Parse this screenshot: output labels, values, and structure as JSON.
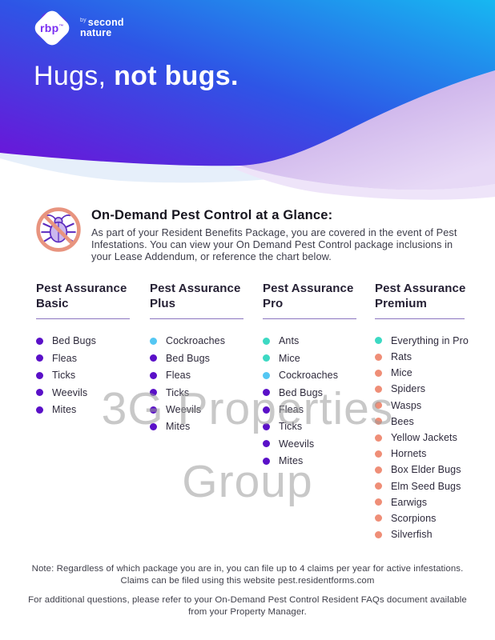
{
  "brand": {
    "logo_text": "rbp",
    "logo_mark": "™",
    "byline_by": "by",
    "byline_line1": "second",
    "byline_line2": "nature"
  },
  "hero": {
    "title_regular": "Hugs, ",
    "title_bold": "not bugs."
  },
  "intro": {
    "icon": "no-bugs-icon",
    "heading": "On-Demand Pest Control at a Glance:",
    "body": "As part of your Resident Benefits Package, you are covered in the event of Pest Infestations. You can view your On Demand Pest Control package inclusions in your Lease Addendum, or reference the chart below."
  },
  "packages": [
    {
      "name_line1": "Pest Assurance",
      "name_line2": "Basic",
      "items": [
        {
          "label": "Bed Bugs",
          "color": "purple"
        },
        {
          "label": "Fleas",
          "color": "purple"
        },
        {
          "label": "Ticks",
          "color": "purple"
        },
        {
          "label": "Weevils",
          "color": "purple"
        },
        {
          "label": "Mites",
          "color": "purple"
        }
      ]
    },
    {
      "name_line1": "Pest Assurance",
      "name_line2": "Plus",
      "items": [
        {
          "label": "Cockroaches",
          "color": "cyan"
        },
        {
          "label": "Bed Bugs",
          "color": "purple"
        },
        {
          "label": "Fleas",
          "color": "purple"
        },
        {
          "label": "Ticks",
          "color": "purple"
        },
        {
          "label": "Weevils",
          "color": "purple"
        },
        {
          "label": "Mites",
          "color": "purple"
        }
      ]
    },
    {
      "name_line1": "Pest Assurance",
      "name_line2": "Pro",
      "items": [
        {
          "label": "Ants",
          "color": "teal"
        },
        {
          "label": "Mice",
          "color": "teal"
        },
        {
          "label": "Cockroaches",
          "color": "cyan"
        },
        {
          "label": "Bed Bugs",
          "color": "purple"
        },
        {
          "label": "Fleas",
          "color": "purple"
        },
        {
          "label": "Ticks",
          "color": "purple"
        },
        {
          "label": "Weevils",
          "color": "purple"
        },
        {
          "label": "Mites",
          "color": "purple"
        }
      ]
    },
    {
      "name_line1": "Pest Assurance",
      "name_line2": "Premium",
      "items": [
        {
          "label": "Everything in Pro",
          "color": "teal"
        },
        {
          "label": "Rats",
          "color": "salmon"
        },
        {
          "label": "Mice",
          "color": "salmon"
        },
        {
          "label": "Spiders",
          "color": "salmon"
        },
        {
          "label": "Wasps",
          "color": "salmon"
        },
        {
          "label": "Bees",
          "color": "salmon"
        },
        {
          "label": "Yellow Jackets",
          "color": "salmon"
        },
        {
          "label": "Hornets",
          "color": "salmon"
        },
        {
          "label": "Box Elder Bugs",
          "color": "salmon"
        },
        {
          "label": "Elm Seed Bugs",
          "color": "salmon"
        },
        {
          "label": "Earwigs",
          "color": "salmon"
        },
        {
          "label": "Scorpions",
          "color": "salmon"
        },
        {
          "label": "Silverfish",
          "color": "salmon"
        }
      ]
    }
  ],
  "watermark": {
    "line1": "3G Properties",
    "line2": "Group"
  },
  "footer": {
    "note_line1": "Note: Regardless of which package you are in, you can file up to 4 claims per year for active infestations.",
    "note_line2": "Claims can be filed using this website pest.residentforms.com",
    "faq_line1": "For additional questions, please refer to your On-Demand Pest Control Resident FAQs document available",
    "faq_line2": "from your Property Manager."
  },
  "colors": {
    "purple": "#5a10c8",
    "cyan": "#54c7f3",
    "teal": "#3cd9c3",
    "salmon": "#ef8e77",
    "underline": "#8a74c0",
    "hero_gradient_start": "#6d13d8",
    "hero_gradient_mid": "#2e55e6",
    "hero_gradient_end": "#17b8f1",
    "no_sign": "#e8947f",
    "bug_body": "#cbb7ee",
    "bug_stroke": "#5b2bbf",
    "watermark_gray": "#9b9b9b"
  }
}
